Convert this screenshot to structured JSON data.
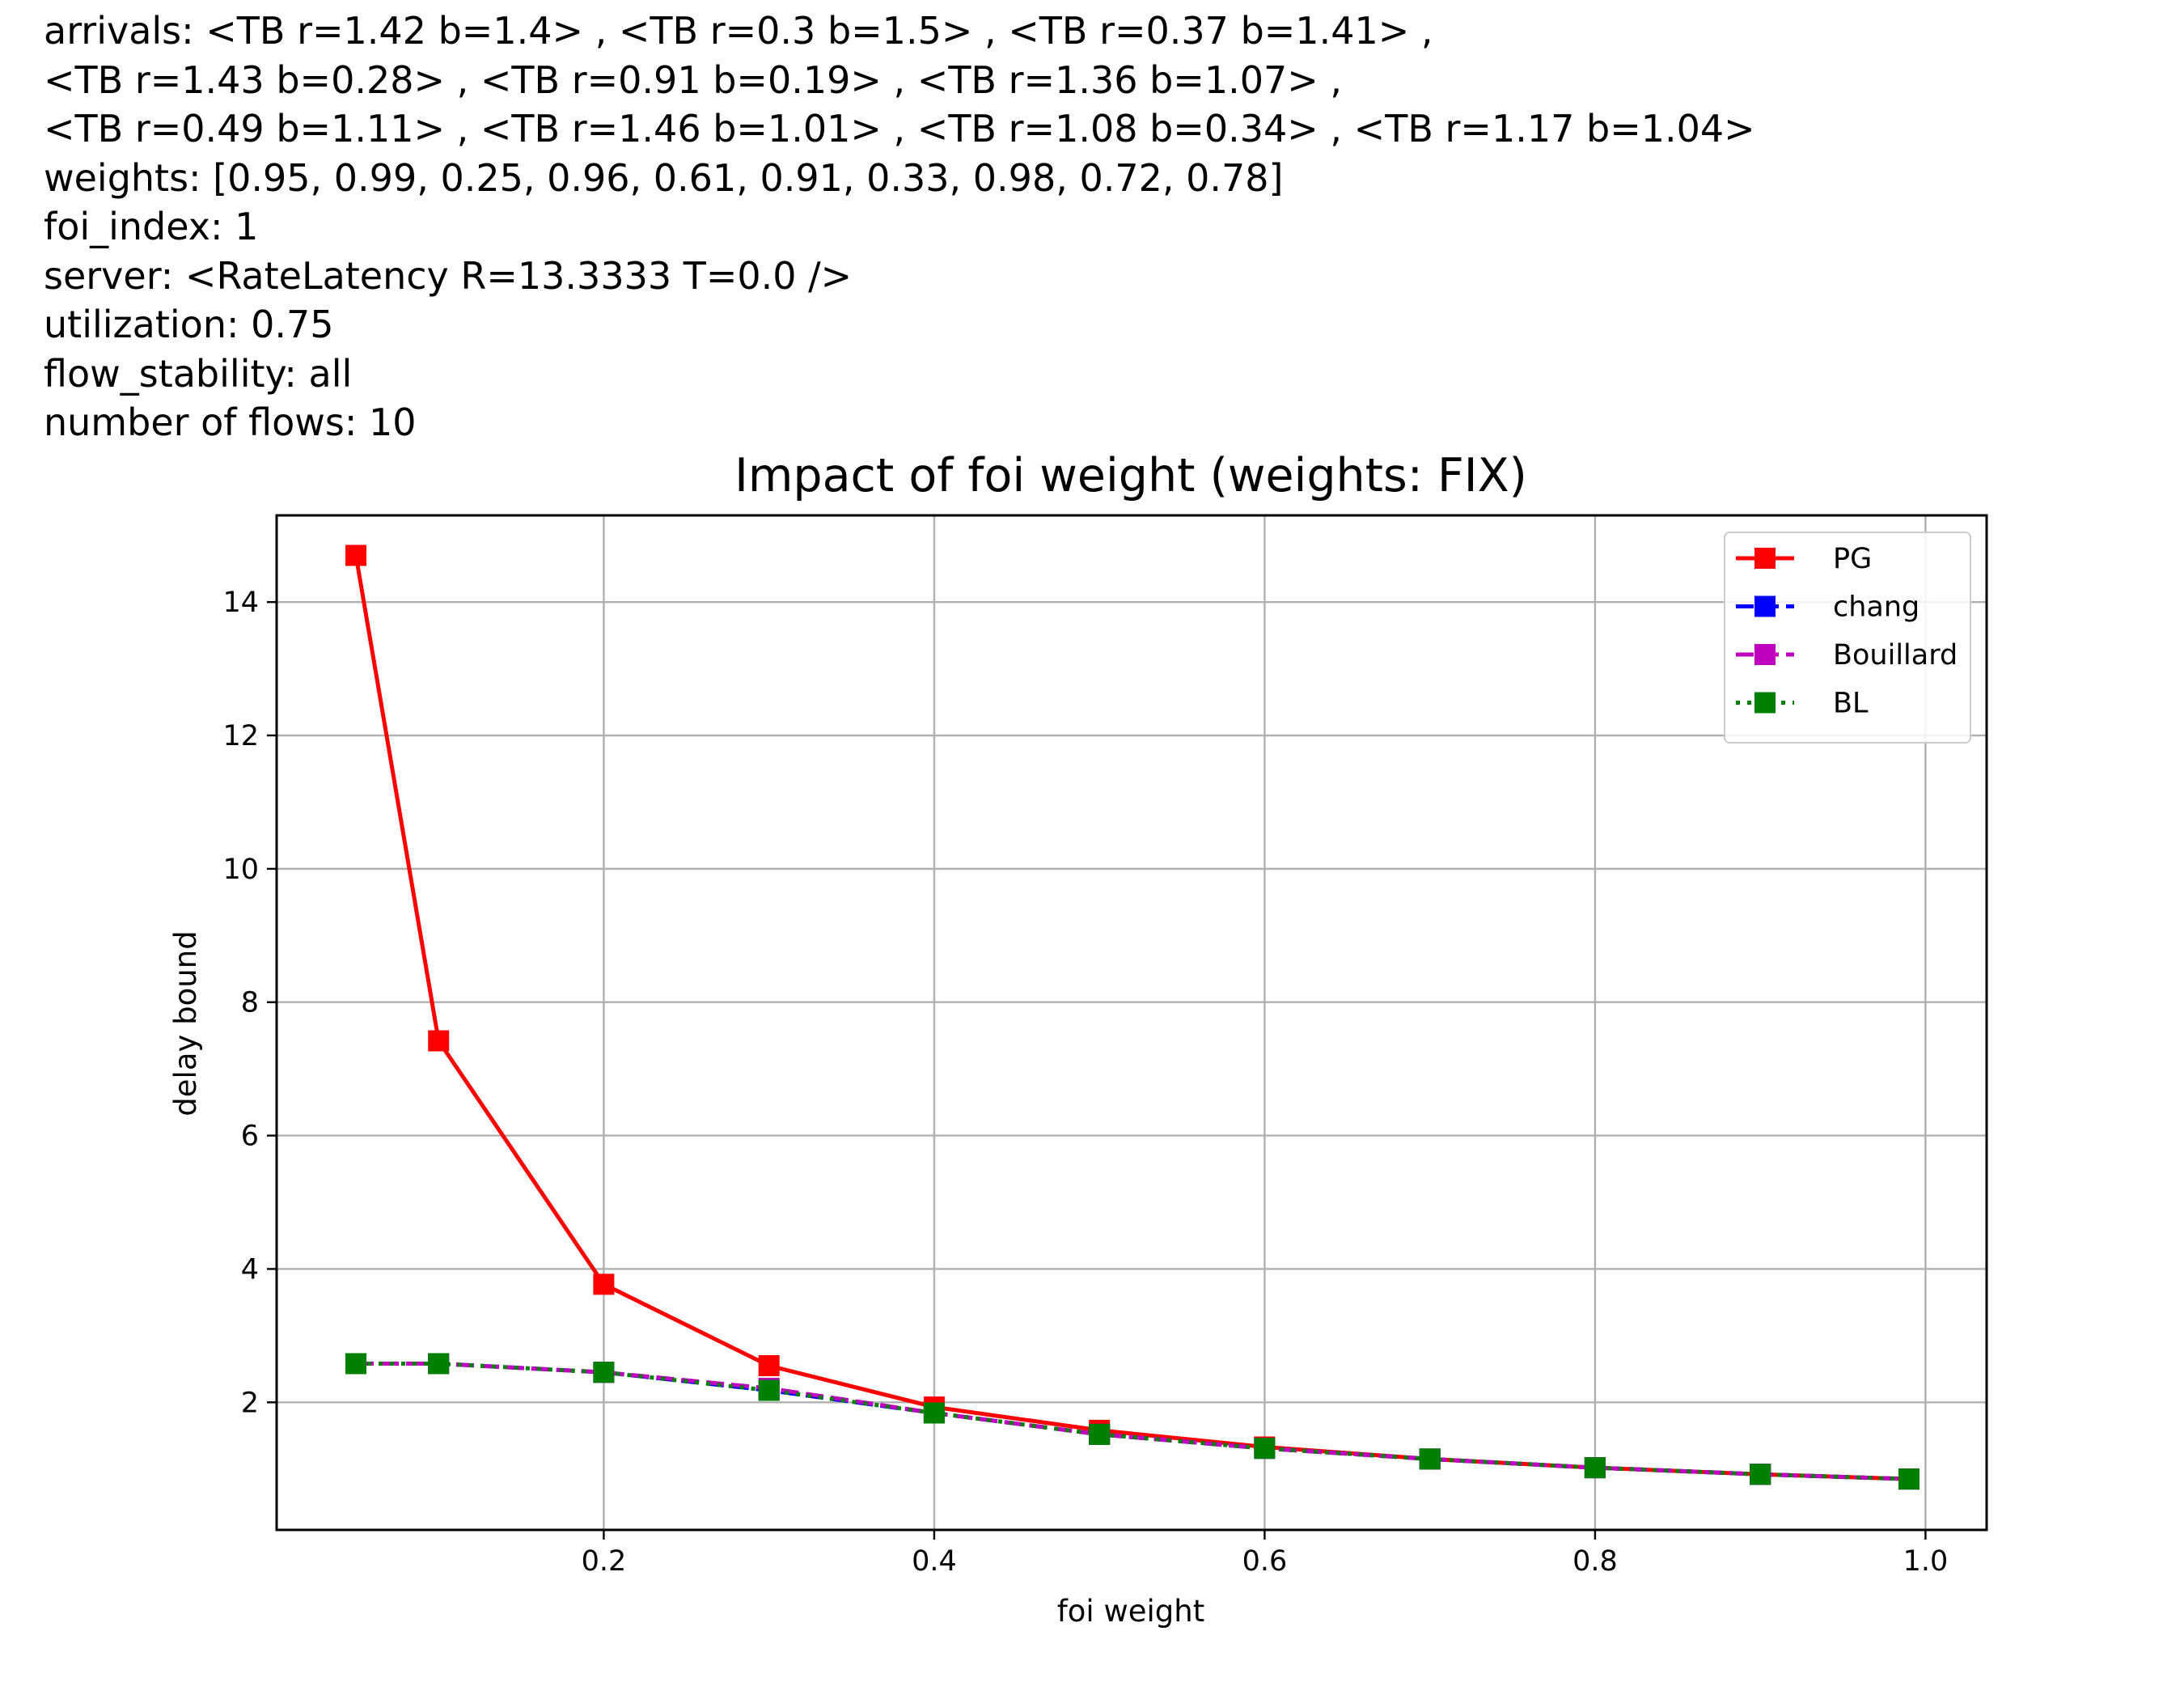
{
  "header": {
    "lines": [
      "arrivals: <TB r=1.42 b=1.4> , <TB r=0.3 b=1.5> , <TB r=0.37 b=1.41> ,",
      "<TB r=1.43 b=0.28> , <TB r=0.91 b=0.19> , <TB r=1.36 b=1.07> ,",
      "<TB r=0.49 b=1.11> , <TB r=1.46 b=1.01> , <TB r=1.08 b=0.34> , <TB r=1.17 b=1.04>",
      "weights: [0.95, 0.99, 0.25, 0.96, 0.61, 0.91, 0.33, 0.98, 0.72, 0.78]",
      "foi_index: 1",
      "server: <RateLatency R=13.3333 T=0.0 />",
      "utilization: 0.75",
      "flow_stability: all",
      "number of flows: 10"
    ]
  },
  "chart_data": {
    "type": "line",
    "title": "Impact of foi weight (weights: FIX)",
    "xlabel": "foi weight",
    "ylabel": "delay bound",
    "x": [
      0.05,
      0.1,
      0.2,
      0.3,
      0.4,
      0.5,
      0.6,
      0.7,
      0.8,
      0.9,
      0.99
    ],
    "xlim": [
      0.002,
      1.037
    ],
    "ylim": [
      0.087,
      15.3
    ],
    "xticks": [
      0.2,
      0.4,
      0.6,
      0.8,
      1.0
    ],
    "xtick_labels": [
      "0.2",
      "0.4",
      "0.6",
      "0.8",
      "1.0"
    ],
    "yticks": [
      2,
      4,
      6,
      8,
      10,
      12,
      14
    ],
    "ytick_labels": [
      "2",
      "4",
      "6",
      "8",
      "10",
      "12",
      "14"
    ],
    "grid": true,
    "legend_position": "top-right",
    "series": [
      {
        "name": "PG",
        "color": "#ff0000",
        "linestyle": "solid",
        "marker": "square",
        "values": [
          14.7,
          7.42,
          3.77,
          2.55,
          1.93,
          1.58,
          1.33,
          1.15,
          1.02,
          0.92,
          0.85
        ]
      },
      {
        "name": "chang",
        "color": "#0000ff",
        "linestyle": "dashed",
        "marker": "square",
        "values": [
          2.58,
          2.58,
          2.45,
          2.18,
          1.84,
          1.52,
          1.31,
          1.15,
          1.02,
          0.92,
          0.85
        ]
      },
      {
        "name": "Bouillard",
        "color": "#bf00bf",
        "linestyle": "dashed",
        "marker": "square",
        "values": [
          2.58,
          2.58,
          2.45,
          2.21,
          1.84,
          1.52,
          1.31,
          1.15,
          1.02,
          0.92,
          0.85
        ]
      },
      {
        "name": "BL",
        "color": "#008000",
        "linestyle": "dotted",
        "marker": "square",
        "values": [
          2.58,
          2.58,
          2.45,
          2.18,
          1.84,
          1.52,
          1.31,
          1.15,
          1.02,
          0.92,
          0.85
        ]
      }
    ]
  }
}
